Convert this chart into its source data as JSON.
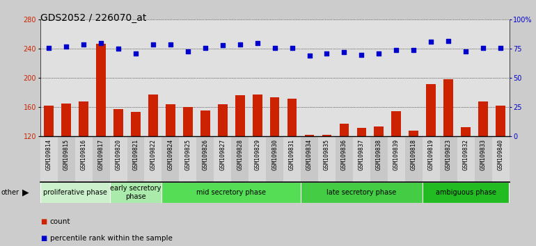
{
  "title": "GDS2052 / 226070_at",
  "samples": [
    "GSM109814",
    "GSM109815",
    "GSM109816",
    "GSM109817",
    "GSM109820",
    "GSM109821",
    "GSM109822",
    "GSM109824",
    "GSM109825",
    "GSM109826",
    "GSM109827",
    "GSM109828",
    "GSM109829",
    "GSM109830",
    "GSM109831",
    "GSM109834",
    "GSM109835",
    "GSM109836",
    "GSM109837",
    "GSM109838",
    "GSM109839",
    "GSM109818",
    "GSM109819",
    "GSM109823",
    "GSM109832",
    "GSM109833",
    "GSM109840"
  ],
  "counts": [
    162,
    165,
    168,
    247,
    158,
    154,
    178,
    164,
    160,
    156,
    164,
    177,
    178,
    174,
    172,
    122,
    122,
    138,
    132,
    134,
    155,
    128,
    192,
    198,
    133,
    168,
    162
  ],
  "percentiles": [
    76,
    77,
    79,
    80,
    75,
    71,
    79,
    79,
    73,
    76,
    78,
    79,
    80,
    76,
    76,
    69,
    71,
    72,
    70,
    71,
    74,
    74,
    81,
    82,
    73,
    76,
    76
  ],
  "phase_groups": [
    {
      "label": "proliferative phase",
      "start": 0,
      "end": 4,
      "color": "#ccf0cc"
    },
    {
      "label": "early secretory\nphase",
      "start": 4,
      "end": 7,
      "color": "#aaeaaa"
    },
    {
      "label": "mid secretory phase",
      "start": 7,
      "end": 15,
      "color": "#55dd55"
    },
    {
      "label": "late secretory phase",
      "start": 15,
      "end": 22,
      "color": "#44cc44"
    },
    {
      "label": "ambiguous phase",
      "start": 22,
      "end": 27,
      "color": "#22bb22"
    }
  ],
  "ylim_left": [
    120,
    280
  ],
  "ylim_right": [
    0,
    100
  ],
  "yticks_left": [
    120,
    160,
    200,
    240,
    280
  ],
  "yticks_right": [
    0,
    25,
    50,
    75,
    100
  ],
  "bar_color": "#cc2200",
  "dot_color": "#0000cc",
  "bg_color": "#cccccc",
  "plot_bg_color": "#e0e0e0",
  "tick_bg_color": "#c8c8c8",
  "title_fontsize": 10,
  "tick_fontsize": 6,
  "label_fontsize": 7,
  "phase_fontsize": 7.5,
  "legend_fontsize": 7.5
}
